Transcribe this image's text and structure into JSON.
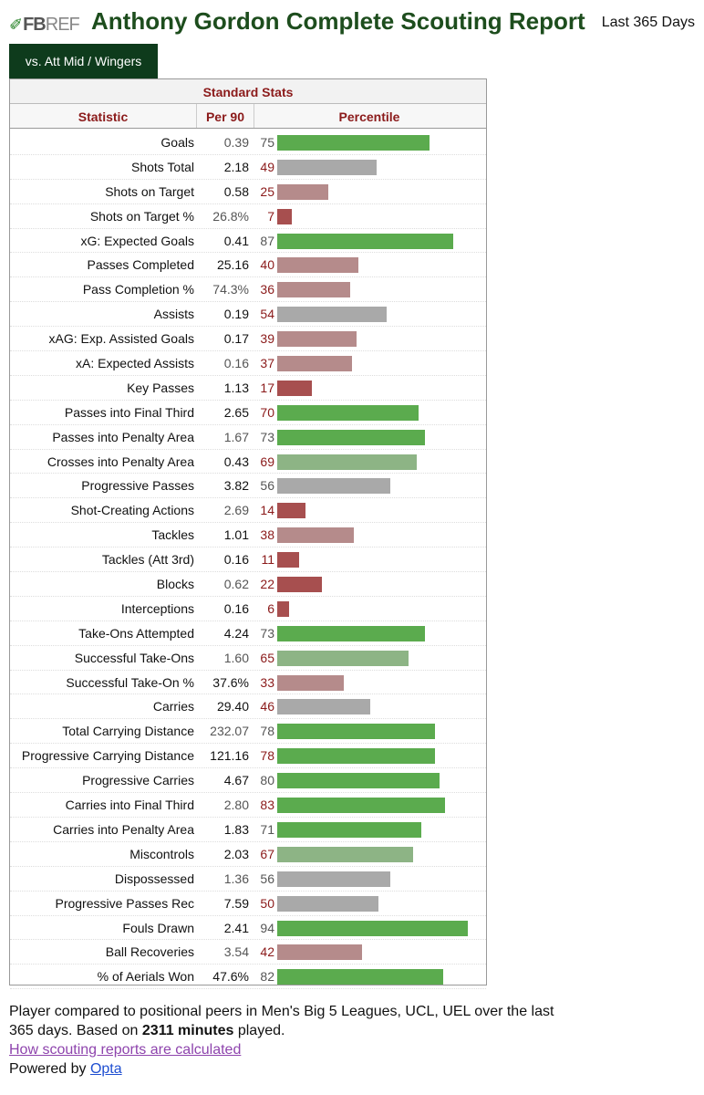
{
  "header": {
    "logo_text": "FB",
    "logo_ref": "REF",
    "title": "Anthony Gordon Complete Scouting Report",
    "period": "Last 365 Days"
  },
  "tab": {
    "label": "vs. Att Mid / Wingers"
  },
  "table": {
    "caption": "Standard Stats",
    "columns": {
      "statistic": "Statistic",
      "per90": "Per 90",
      "percentile": "Percentile"
    },
    "rows": [
      {
        "stat": "Goals",
        "per90": "0.39",
        "pct": 75
      },
      {
        "stat": "Shots Total",
        "per90": "2.18",
        "pct": 49
      },
      {
        "stat": "Shots on Target",
        "per90": "0.58",
        "pct": 25
      },
      {
        "stat": "Shots on Target %",
        "per90": "26.8%",
        "pct": 7
      },
      {
        "stat": "xG: Expected Goals",
        "per90": "0.41",
        "pct": 87
      },
      {
        "stat": "Passes Completed",
        "per90": "25.16",
        "pct": 40
      },
      {
        "stat": "Pass Completion %",
        "per90": "74.3%",
        "pct": 36
      },
      {
        "stat": "Assists",
        "per90": "0.19",
        "pct": 54
      },
      {
        "stat": "xAG: Exp. Assisted Goals",
        "per90": "0.17",
        "pct": 39
      },
      {
        "stat": "xA: Expected Assists",
        "per90": "0.16",
        "pct": 37
      },
      {
        "stat": "Key Passes",
        "per90": "1.13",
        "pct": 17
      },
      {
        "stat": "Passes into Final Third",
        "per90": "2.65",
        "pct": 70
      },
      {
        "stat": "Passes into Penalty Area",
        "per90": "1.67",
        "pct": 73
      },
      {
        "stat": "Crosses into Penalty Area",
        "per90": "0.43",
        "pct": 69
      },
      {
        "stat": "Progressive Passes",
        "per90": "3.82",
        "pct": 56
      },
      {
        "stat": "Shot-Creating Actions",
        "per90": "2.69",
        "pct": 14
      },
      {
        "stat": "Tackles",
        "per90": "1.01",
        "pct": 38
      },
      {
        "stat": "Tackles (Att 3rd)",
        "per90": "0.16",
        "pct": 11
      },
      {
        "stat": "Blocks",
        "per90": "0.62",
        "pct": 22
      },
      {
        "stat": "Interceptions",
        "per90": "0.16",
        "pct": 6
      },
      {
        "stat": "Take-Ons Attempted",
        "per90": "4.24",
        "pct": 73
      },
      {
        "stat": "Successful Take-Ons",
        "per90": "1.60",
        "pct": 65
      },
      {
        "stat": "Successful Take-On %",
        "per90": "37.6%",
        "pct": 33
      },
      {
        "stat": "Carries",
        "per90": "29.40",
        "pct": 46
      },
      {
        "stat": "Total Carrying Distance",
        "per90": "232.07",
        "pct": 78
      },
      {
        "stat": "Progressive Carrying Distance",
        "per90": "121.16",
        "pct": 78
      },
      {
        "stat": "Progressive Carries",
        "per90": "4.67",
        "pct": 80
      },
      {
        "stat": "Carries into Final Third",
        "per90": "2.80",
        "pct": 83
      },
      {
        "stat": "Carries into Penalty Area",
        "per90": "1.83",
        "pct": 71
      },
      {
        "stat": "Miscontrols",
        "per90": "2.03",
        "pct": 67
      },
      {
        "stat": "Dispossessed",
        "per90": "1.36",
        "pct": 56
      },
      {
        "stat": "Progressive Passes Rec",
        "per90": "7.59",
        "pct": 50
      },
      {
        "stat": "Fouls Drawn",
        "per90": "2.41",
        "pct": 94
      },
      {
        "stat": "Ball Recoveries",
        "per90": "3.54",
        "pct": 42
      },
      {
        "stat": "% of Aerials Won",
        "per90": "47.6%",
        "pct": 82
      }
    ]
  },
  "footer": {
    "note_before": "Player compared to positional peers in Men's Big 5 Leagues, UCL, UEL over the last 365 days. Based on ",
    "minutes": "2311 minutes",
    "note_after": " played.",
    "link_label": "How scouting reports are calculated",
    "powered_label": "Powered by ",
    "powered_link": "Opta"
  },
  "colors": {
    "high_green": "#5bab4e",
    "mid_green": "#8db485",
    "neutral_gray": "#a9a9a9",
    "low_pink": "#b58b8b",
    "very_low_red": "#a74f4f"
  }
}
